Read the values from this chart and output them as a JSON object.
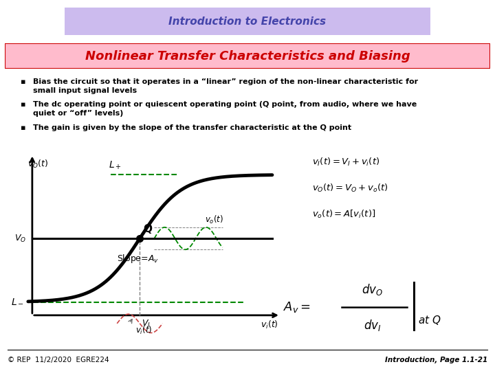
{
  "title_box_text": "Introduction to Electronics",
  "subtitle_text": "Nonlinear Transfer Characteristics and Biasing",
  "bullets": [
    "Bias the circuit so that it operates in a “linear” region of the non-linear characteristic for\nsmall input signal levels",
    "The dc operating point or quiescent operating point (Q point, from audio, where we have\nquiet or “off” levels)",
    "The gain is given by the slope of the transfer characteristic at the Q point"
  ],
  "footer_left": "© REP  11/2/2020  EGRE224",
  "footer_right": "Introduction, Page 1.1-21",
  "title_bg": "#ccbbee",
  "subtitle_bg": "#ffbbcc",
  "slide_bg": "#ffffff",
  "title_color": "#4444aa",
  "subtitle_color": "#cc0000",
  "bullet_color": "#000000",
  "curve_color": "#111111",
  "dashed_green": "#008800",
  "dashed_red": "#cc4444"
}
